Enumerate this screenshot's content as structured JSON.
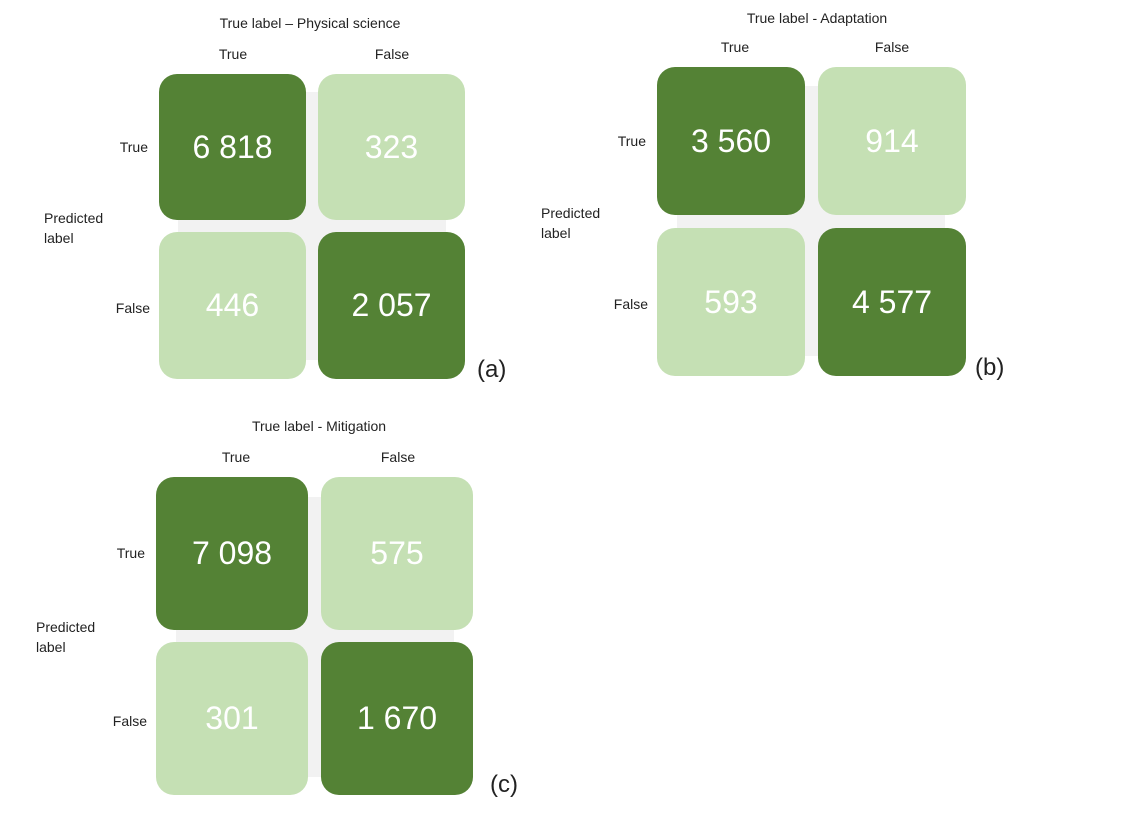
{
  "panels": [
    {
      "title": "True label – Physical science",
      "col_labels": [
        "True",
        "False"
      ],
      "row_labels": [
        "True",
        "False"
      ],
      "axis_label": "Predicted label",
      "tag": "(a)",
      "cells": [
        [
          "6 818",
          "323"
        ],
        [
          "446",
          "2 057"
        ]
      ]
    },
    {
      "title": "True label - Adaptation",
      "col_labels": [
        "True",
        "False"
      ],
      "row_labels": [
        "True",
        "False"
      ],
      "axis_label": "Predicted label",
      "tag": "(b)",
      "cells": [
        [
          "3 560",
          "914"
        ],
        [
          "593",
          "4 577"
        ]
      ]
    },
    {
      "title": "True label - Mitigation",
      "col_labels": [
        "True",
        "False"
      ],
      "row_labels": [
        "True",
        "False"
      ],
      "axis_label": "Predicted label",
      "tag": "(c)",
      "cells": [
        [
          "7 098",
          "575"
        ],
        [
          "301",
          "1 670"
        ]
      ]
    }
  ],
  "colors": {
    "strong": "#548235",
    "weak": "#c5e0b4",
    "backdrop": "#f2f2f2"
  }
}
